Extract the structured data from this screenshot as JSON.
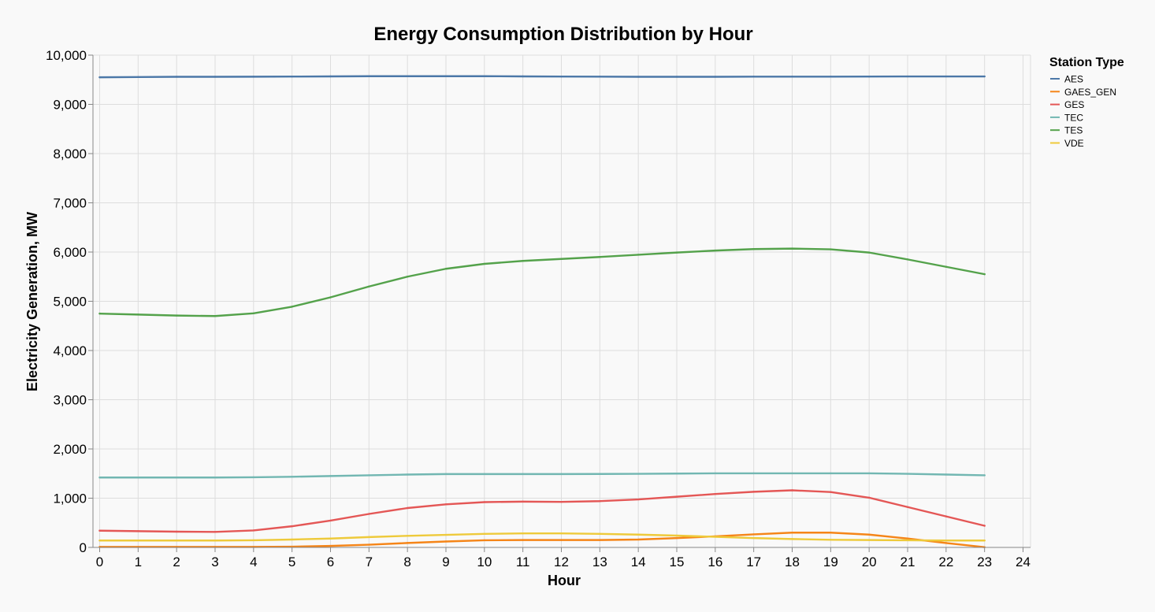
{
  "chart_data": {
    "type": "line",
    "title": "Energy Consumption Distribution by Hour",
    "xlabel": "Hour",
    "ylabel": "Electricity Generation, MW",
    "xlim": [
      0,
      24
    ],
    "ylim": [
      0,
      10000
    ],
    "x_ticks": [
      "0",
      "1",
      "2",
      "3",
      "4",
      "5",
      "6",
      "7",
      "8",
      "9",
      "10",
      "11",
      "12",
      "13",
      "14",
      "15",
      "16",
      "17",
      "18",
      "19",
      "20",
      "21",
      "22",
      "23",
      "24"
    ],
    "y_ticks": [
      "0",
      "1,000",
      "2,000",
      "3,000",
      "4,000",
      "5,000",
      "6,000",
      "7,000",
      "8,000",
      "9,000",
      "10,000"
    ],
    "grid": true,
    "legend": {
      "title": "Station Type",
      "position": "top-right"
    },
    "x": [
      0,
      1,
      2,
      3,
      4,
      5,
      6,
      7,
      8,
      9,
      10,
      11,
      12,
      13,
      14,
      15,
      16,
      17,
      18,
      19,
      20,
      21,
      22,
      23
    ],
    "series": [
      {
        "name": "AES",
        "color": "#4c78a8",
        "values": [
          9550,
          9555,
          9560,
          9560,
          9562,
          9565,
          9568,
          9572,
          9572,
          9572,
          9572,
          9568,
          9565,
          9563,
          9560,
          9560,
          9560,
          9563,
          9563,
          9563,
          9565,
          9567,
          9567,
          9567
        ]
      },
      {
        "name": "GAES_GEN",
        "color": "#f58518",
        "values": [
          10,
          10,
          10,
          10,
          10,
          15,
          30,
          55,
          90,
          120,
          145,
          150,
          150,
          150,
          160,
          190,
          225,
          265,
          300,
          300,
          260,
          180,
          90,
          5
        ]
      },
      {
        "name": "GES",
        "color": "#e45756",
        "values": [
          340,
          330,
          320,
          315,
          345,
          430,
          545,
          680,
          800,
          875,
          920,
          930,
          925,
          940,
          975,
          1030,
          1085,
          1130,
          1160,
          1125,
          1010,
          820,
          630,
          440
        ]
      },
      {
        "name": "TEC",
        "color": "#72b7b2",
        "values": [
          1420,
          1420,
          1420,
          1420,
          1425,
          1435,
          1450,
          1465,
          1480,
          1490,
          1490,
          1490,
          1490,
          1492,
          1495,
          1500,
          1505,
          1505,
          1505,
          1505,
          1505,
          1495,
          1480,
          1465
        ]
      },
      {
        "name": "TES",
        "color": "#54a24b",
        "values": [
          4750,
          4730,
          4710,
          4700,
          4755,
          4890,
          5080,
          5300,
          5500,
          5660,
          5760,
          5820,
          5860,
          5900,
          5945,
          5990,
          6030,
          6060,
          6070,
          6055,
          5990,
          5850,
          5700,
          5550
        ]
      },
      {
        "name": "VDE",
        "color": "#eeca3b",
        "values": [
          140,
          140,
          140,
          140,
          145,
          160,
          180,
          210,
          235,
          255,
          275,
          285,
          285,
          275,
          260,
          240,
          215,
          190,
          170,
          155,
          150,
          145,
          140,
          140
        ]
      }
    ]
  }
}
